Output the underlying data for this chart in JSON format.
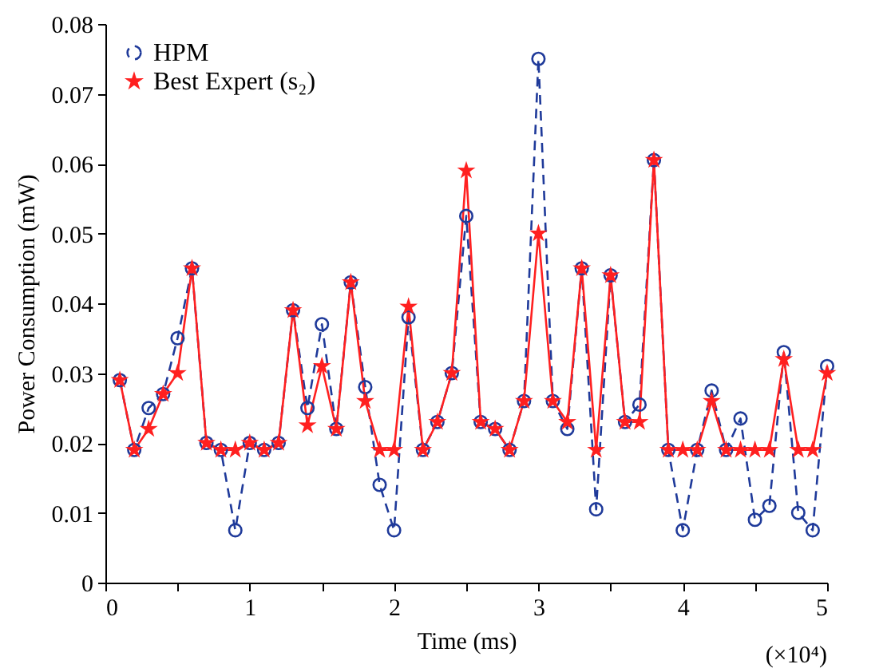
{
  "chart_data": {
    "type": "line",
    "xlabel": "Time (ms)",
    "ylabel": "Power Consumption (mW)",
    "annotations": [
      "(×10⁴)"
    ],
    "x": [
      0.1,
      0.2,
      0.3,
      0.4,
      0.5,
      0.6,
      0.7,
      0.8,
      0.9,
      1.0,
      1.1,
      1.2,
      1.3,
      1.4,
      1.5,
      1.6,
      1.7,
      1.8,
      1.9,
      2.0,
      2.1,
      2.2,
      2.3,
      2.4,
      2.5,
      2.6,
      2.7,
      2.8,
      2.9,
      3.0,
      3.1,
      3.2,
      3.3,
      3.4,
      3.5,
      3.6,
      3.7,
      3.8,
      3.9,
      4.0,
      4.1,
      4.2,
      4.3,
      4.4,
      4.5,
      4.6,
      4.7,
      4.8,
      4.9,
      5.0
    ],
    "series": [
      {
        "name": "HPM",
        "color": "#1f3a9a",
        "marker": "circle",
        "line_style": "dashed",
        "values": [
          0.029,
          0.019,
          0.025,
          0.027,
          0.035,
          0.045,
          0.02,
          0.019,
          0.0075,
          0.02,
          0.019,
          0.02,
          0.039,
          0.025,
          0.037,
          0.022,
          0.043,
          0.028,
          0.014,
          0.0075,
          0.038,
          0.019,
          0.023,
          0.03,
          0.0525,
          0.023,
          0.022,
          0.019,
          0.026,
          0.075,
          0.026,
          0.022,
          0.045,
          0.0105,
          0.044,
          0.023,
          0.0255,
          0.0605,
          0.019,
          0.0075,
          0.019,
          0.0275,
          0.019,
          0.0235,
          0.009,
          0.011,
          0.033,
          0.01,
          0.0075,
          0.031
        ]
      },
      {
        "name": "Best Expert (s₂)",
        "color": "#ff2020",
        "marker": "star",
        "line_style": "solid",
        "values": [
          0.029,
          0.019,
          0.022,
          0.027,
          0.03,
          0.045,
          0.02,
          0.019,
          0.019,
          0.02,
          0.019,
          0.02,
          0.039,
          0.0225,
          0.031,
          0.022,
          0.043,
          0.026,
          0.019,
          0.019,
          0.0395,
          0.019,
          0.023,
          0.03,
          0.059,
          0.023,
          0.022,
          0.019,
          0.026,
          0.05,
          0.026,
          0.023,
          0.045,
          0.019,
          0.044,
          0.023,
          0.023,
          0.0605,
          0.019,
          0.019,
          0.019,
          0.026,
          0.019,
          0.019,
          0.019,
          0.019,
          0.032,
          0.019,
          0.019,
          0.03
        ]
      }
    ],
    "xlim": [
      0,
      5
    ],
    "xticks": [
      0,
      {
        "value": 0.5,
        "label": null
      },
      1,
      {
        "value": 1.5,
        "label": null
      },
      2,
      {
        "value": 2.5,
        "label": null
      },
      3,
      {
        "value": 3.5,
        "label": null
      },
      4,
      {
        "value": 4.5,
        "label": null
      },
      5
    ],
    "ylim": [
      0,
      0.08
    ],
    "yticks": [
      0,
      0.01,
      0.02,
      0.03,
      0.04,
      0.05,
      0.06,
      0.07,
      0.08
    ],
    "grid": false,
    "legend": "top left"
  }
}
